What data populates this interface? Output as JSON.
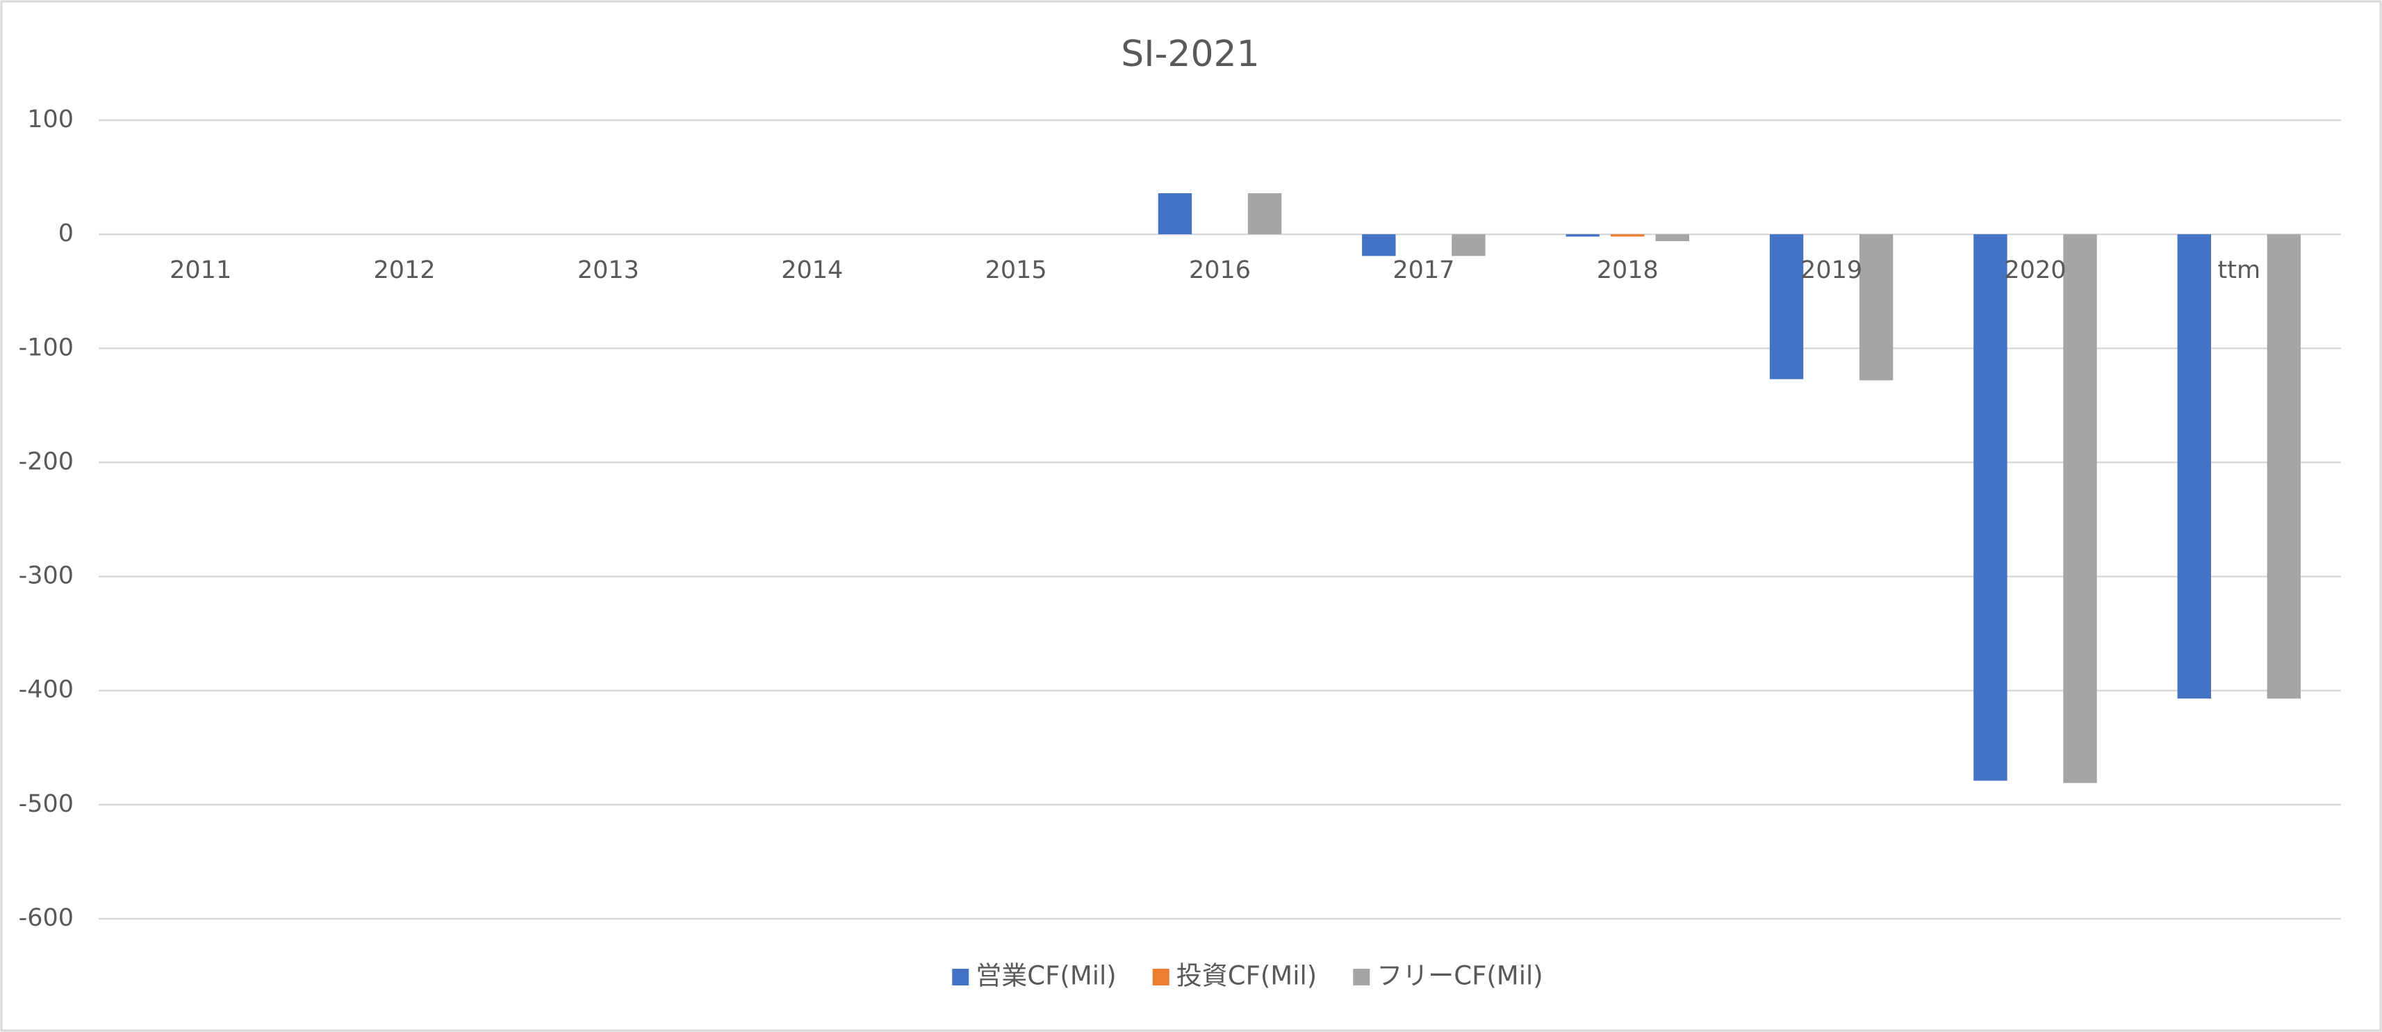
{
  "chart_data": {
    "type": "bar",
    "title": "SI-2021",
    "categories": [
      "2011",
      "2012",
      "2013",
      "2014",
      "2015",
      "2016",
      "2017",
      "2018",
      "2019",
      "2020",
      "ttm"
    ],
    "series": [
      {
        "name": "営業CF(Mil)",
        "color": "#4472c4",
        "values": [
          null,
          null,
          null,
          null,
          null,
          36,
          -19,
          -2,
          -127,
          -479,
          -407
        ]
      },
      {
        "name": "投資CF(Mil)",
        "color": "#ed7d31",
        "values": [
          null,
          null,
          null,
          null,
          null,
          0,
          0,
          -2,
          0,
          0,
          0
        ]
      },
      {
        "name": "フリーCF(Mil)",
        "color": "#a5a5a5",
        "values": [
          null,
          null,
          null,
          null,
          null,
          36,
          -19,
          -6,
          -128,
          -481,
          -407
        ]
      }
    ],
    "ylim": [
      -600,
      100
    ],
    "yticks": [
      -600,
      -500,
      -400,
      -300,
      -200,
      -100,
      0,
      100
    ],
    "grid": true,
    "legend": "bottom"
  }
}
